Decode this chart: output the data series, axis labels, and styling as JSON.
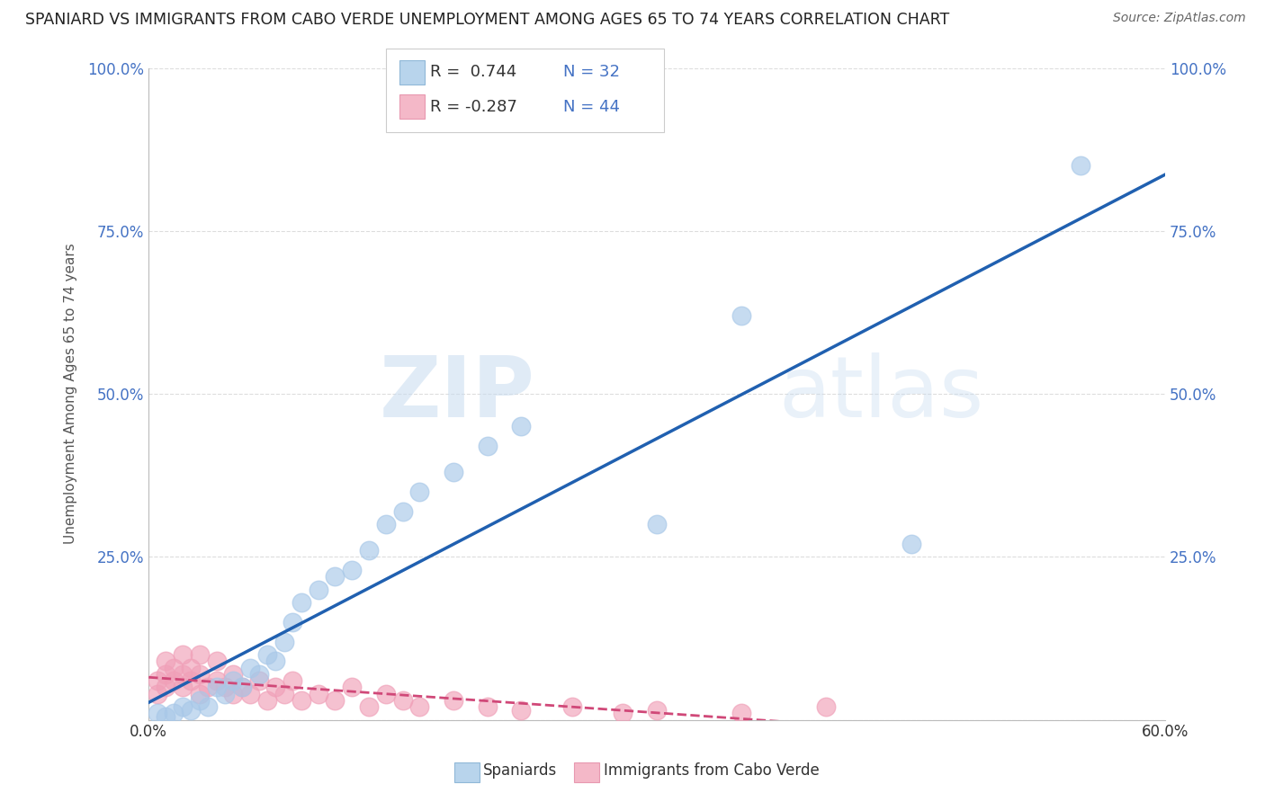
{
  "title": "SPANIARD VS IMMIGRANTS FROM CABO VERDE UNEMPLOYMENT AMONG AGES 65 TO 74 YEARS CORRELATION CHART",
  "source": "Source: ZipAtlas.com",
  "ylabel": "Unemployment Among Ages 65 to 74 years",
  "xlim": [
    0.0,
    0.6
  ],
  "ylim": [
    0.0,
    1.0
  ],
  "xticks": [
    0.0,
    0.1,
    0.2,
    0.3,
    0.4,
    0.5,
    0.6
  ],
  "xticklabels": [
    "0.0%",
    "",
    "",
    "",
    "",
    "",
    "60.0%"
  ],
  "yticks": [
    0.0,
    0.25,
    0.5,
    0.75,
    1.0
  ],
  "yticklabels": [
    "",
    "25.0%",
    "50.0%",
    "75.0%",
    "100.0%"
  ],
  "watermark_zip": "ZIP",
  "watermark_atlas": "atlas",
  "legend_r1": "R =  0.744",
  "legend_n1": "N = 32",
  "legend_r2": "R = -0.287",
  "legend_n2": "N = 44",
  "blue_scatter_color": "#A8C8E8",
  "pink_scatter_color": "#F0A0B8",
  "blue_line_color": "#2060B0",
  "pink_line_color": "#D04878",
  "grid_color": "#DDDDDD",
  "background_color": "#FFFFFF",
  "sp_x": [
    0.005,
    0.01,
    0.015,
    0.02,
    0.025,
    0.03,
    0.035,
    0.04,
    0.045,
    0.05,
    0.055,
    0.06,
    0.065,
    0.07,
    0.075,
    0.08,
    0.085,
    0.09,
    0.1,
    0.11,
    0.12,
    0.13,
    0.14,
    0.15,
    0.16,
    0.18,
    0.2,
    0.22,
    0.3,
    0.35,
    0.45,
    0.55
  ],
  "sp_y": [
    0.01,
    0.005,
    0.01,
    0.02,
    0.015,
    0.03,
    0.02,
    0.05,
    0.04,
    0.06,
    0.05,
    0.08,
    0.07,
    0.1,
    0.09,
    0.12,
    0.15,
    0.18,
    0.2,
    0.22,
    0.23,
    0.26,
    0.3,
    0.32,
    0.35,
    0.38,
    0.42,
    0.45,
    0.3,
    0.62,
    0.27,
    0.85
  ],
  "cv_x": [
    0.005,
    0.005,
    0.01,
    0.01,
    0.01,
    0.015,
    0.015,
    0.02,
    0.02,
    0.02,
    0.025,
    0.025,
    0.03,
    0.03,
    0.03,
    0.035,
    0.04,
    0.04,
    0.045,
    0.05,
    0.05,
    0.055,
    0.06,
    0.065,
    0.07,
    0.075,
    0.08,
    0.085,
    0.09,
    0.1,
    0.11,
    0.12,
    0.13,
    0.14,
    0.15,
    0.16,
    0.18,
    0.2,
    0.22,
    0.25,
    0.28,
    0.3,
    0.35,
    0.4
  ],
  "cv_y": [
    0.04,
    0.06,
    0.05,
    0.07,
    0.09,
    0.06,
    0.08,
    0.05,
    0.07,
    0.1,
    0.06,
    0.08,
    0.04,
    0.07,
    0.1,
    0.05,
    0.06,
    0.09,
    0.05,
    0.04,
    0.07,
    0.05,
    0.04,
    0.06,
    0.03,
    0.05,
    0.04,
    0.06,
    0.03,
    0.04,
    0.03,
    0.05,
    0.02,
    0.04,
    0.03,
    0.02,
    0.03,
    0.02,
    0.015,
    0.02,
    0.01,
    0.015,
    0.01,
    0.02
  ]
}
